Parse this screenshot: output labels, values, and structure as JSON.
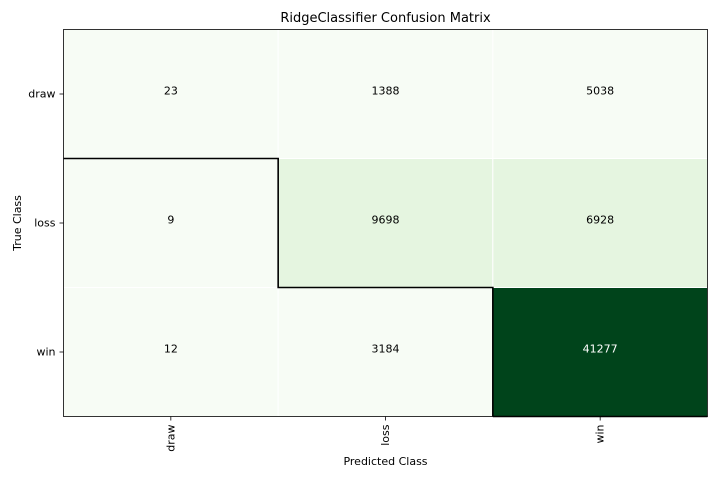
{
  "chart_data": {
    "type": "heatmap",
    "title": "RidgeClassifier Confusion Matrix",
    "xlabel": "Predicted Class",
    "ylabel": "True Class",
    "x_categories": [
      "draw",
      "loss",
      "win"
    ],
    "y_categories": [
      "draw",
      "loss",
      "win"
    ],
    "values": [
      [
        23,
        1388,
        5038
      ],
      [
        9,
        9698,
        6928
      ],
      [
        12,
        3184,
        41277
      ]
    ],
    "cell_labels": [
      [
        "23",
        "1388",
        "5038"
      ],
      [
        "9",
        "9698",
        "6928"
      ],
      [
        "12",
        "3184",
        "41277"
      ]
    ],
    "colormap": "Greens",
    "value_range": [
      0,
      41277
    ],
    "diagonal_outlined": true,
    "grid": false,
    "legend": "none"
  }
}
